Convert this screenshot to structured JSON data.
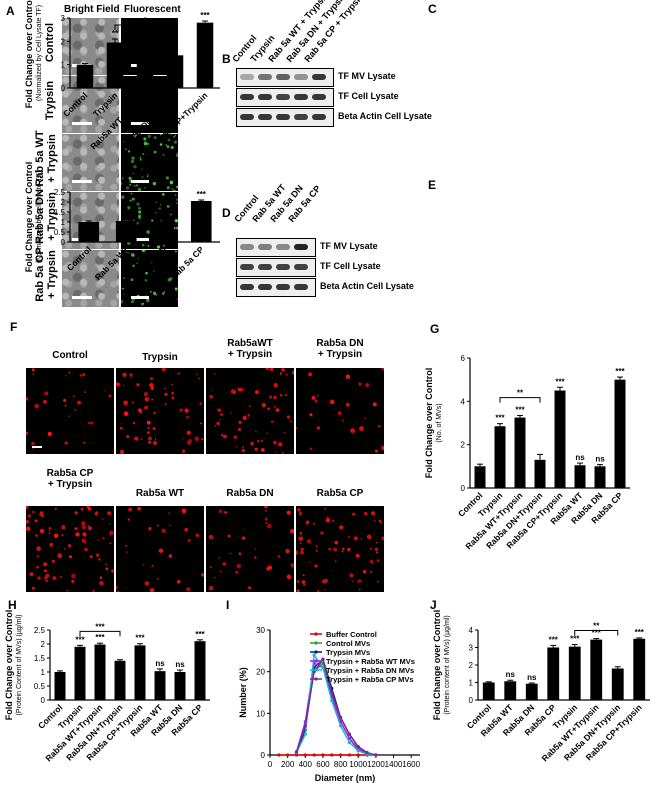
{
  "panel_labels": [
    "A",
    "B",
    "C",
    "D",
    "E",
    "F",
    "G",
    "H",
    "I",
    "J"
  ],
  "panelA": {
    "col_headers": [
      "Bright Field",
      "Fluorescent"
    ],
    "row_labels": [
      "Control",
      "Trypsin",
      "Rab 5a WT + Trypsin",
      "Rab 5a DN + Trypsin",
      "Rab 5a CP + Trypsin"
    ],
    "fluor_levels": [
      0,
      0,
      0.45,
      0.35,
      0.3
    ]
  },
  "panelB": {
    "lanes": [
      "Control",
      "Trypsin",
      "Rab 5a WT + Trypsin",
      "Rab 5a DN + Trypsin",
      "Rab 5a CP + Trypsin"
    ],
    "rows": [
      "TF MV Lysate",
      "TF Cell Lysate",
      "Beta Actin Cell Lysate"
    ]
  },
  "panelD": {
    "lanes": [
      "Control",
      "Rab 5a WT",
      "Rab 5a DN",
      "Rab 5a CP"
    ],
    "rows": [
      "TF MV Lysate",
      "TF Cell Lysate",
      "Beta Actin Cell Lysate"
    ]
  },
  "panelF": {
    "titles": [
      "Control",
      "Trypsin",
      "Rab5aWT + Trypsin",
      "Rab5a DN + Trypsin",
      "Rab5a CP + Trypsin",
      "Rab5a WT",
      "Rab5a DN",
      "Rab5a CP"
    ],
    "densities": [
      0.3,
      0.65,
      0.6,
      0.25,
      0.85,
      0.3,
      0.35,
      0.75
    ]
  },
  "chart_data": [
    {
      "id": "C",
      "type": "bar",
      "categories": [
        "Control",
        "Trypsin",
        "Rab5a WT+Trypsin",
        "Rab5a DN+Trypsin",
        "Rab5a CP+Trypsin"
      ],
      "values": [
        1.0,
        1.95,
        2.3,
        1.4,
        2.8
      ],
      "errors": [
        0.05,
        0.15,
        0.07,
        0.08,
        0.07
      ],
      "sig": [
        "",
        "**",
        "***",
        "",
        "***"
      ],
      "brackets": [
        {
          "from": 1,
          "to": 3,
          "label": "*"
        }
      ],
      "ylabel": "Fold Change over Control",
      "ylabel2": "(Normalized by Cell Lysate TF)",
      "ylim": [
        0,
        3
      ],
      "yticks": [
        0,
        1,
        2,
        3
      ]
    },
    {
      "id": "E",
      "type": "bar",
      "categories": [
        "Control",
        "Rab 5a WT",
        "Rab 5a DN",
        "Rab 5a CP"
      ],
      "values": [
        1.0,
        1.05,
        1.03,
        2.05
      ],
      "errors": [
        0.05,
        0.05,
        0.04,
        0.05
      ],
      "sig": [
        "",
        "ns",
        "ns",
        "***"
      ],
      "brackets": [],
      "ylabel": "Fold Change over Control",
      "ylabel2": "(Normalized by cell lysate TF)",
      "ylim": [
        0,
        2.5
      ],
      "yticks": [
        0,
        0.5,
        1,
        1.5,
        2,
        2.5
      ]
    },
    {
      "id": "G",
      "type": "bar",
      "categories": [
        "Control",
        "Trypsin",
        "Rab5a WT+Trypsin",
        "Rab5a DN+Trypsin",
        "Rab5a CP+Trypsin",
        "Rab5a WT",
        "Rab5a DN",
        "Rab5a CP"
      ],
      "values": [
        1.0,
        2.85,
        3.25,
        1.3,
        4.5,
        1.05,
        1.0,
        5.0
      ],
      "errors": [
        0.1,
        0.12,
        0.1,
        0.25,
        0.15,
        0.1,
        0.08,
        0.12
      ],
      "sig": [
        "",
        "***",
        "***",
        "",
        "***",
        "ns",
        "ns",
        "***"
      ],
      "brackets": [
        {
          "from": 1,
          "to": 3,
          "label": "**"
        }
      ],
      "ylabel": "Fold Change over Control",
      "ylabel2": "(No. of MVs)",
      "ylim": [
        0,
        6
      ],
      "yticks": [
        0,
        2,
        4,
        6
      ]
    },
    {
      "id": "H",
      "type": "bar",
      "categories": [
        "Control",
        "Trypsin",
        "Rab5a WT+Trypsin",
        "Rab5a DN+Trypsin",
        "Rab5a CP+Trypsin",
        "Rab5a WT",
        "Rab5a DN",
        "Rab5a CP"
      ],
      "values": [
        1.0,
        1.9,
        1.98,
        1.4,
        1.95,
        1.03,
        1.0,
        2.1
      ],
      "errors": [
        0.04,
        0.05,
        0.05,
        0.04,
        0.06,
        0.08,
        0.07,
        0.05
      ],
      "sig": [
        "",
        "***",
        "***",
        "",
        "***",
        "ns",
        "ns",
        "***"
      ],
      "brackets": [
        {
          "from": 1,
          "to": 3,
          "label": "***"
        }
      ],
      "ylabel": "Fold Change over Control",
      "ylabel2": "(Protein Content of MVs) (µg/ml)",
      "ylim": [
        0,
        2.5
      ],
      "yticks": [
        0,
        0.5,
        1,
        1.5,
        2,
        2.5
      ]
    },
    {
      "id": "I",
      "type": "line",
      "xlabel": "Diameter (nm)",
      "ylabel": "Number (%)",
      "xlim": [
        0,
        1700
      ],
      "ylim": [
        0,
        30
      ],
      "xticks": [
        0,
        200,
        400,
        600,
        800,
        1000,
        1200,
        1400,
        1600
      ],
      "yticks": [
        0,
        10,
        20,
        30
      ],
      "series": [
        {
          "name": "Buffer Control",
          "color": "#e00000",
          "x": [
            100,
            200,
            300,
            400,
            500,
            600,
            700,
            800,
            900,
            1000,
            1100,
            1200
          ],
          "y": [
            0,
            0,
            0,
            0,
            0,
            0,
            0,
            0,
            0,
            0,
            0,
            0
          ]
        },
        {
          "name": "Control MVs",
          "color": "#2ca02c",
          "x": [
            300,
            400,
            500,
            600,
            700,
            800,
            900,
            1000,
            1100,
            1200
          ],
          "y": [
            0.5,
            7,
            20,
            22,
            15,
            8,
            4,
            1,
            0.3,
            0
          ]
        },
        {
          "name": "Trypsin MVs",
          "color": "#0a1a8c",
          "x": [
            300,
            400,
            500,
            600,
            700,
            800,
            900,
            1000,
            1100,
            1200
          ],
          "y": [
            0.5,
            6,
            21,
            23,
            16,
            9,
            5,
            2,
            0.5,
            0
          ]
        },
        {
          "name": "Trypsin + Rab5a WT MVs",
          "color": "#a020f0",
          "x": [
            300,
            400,
            500,
            600,
            700,
            800,
            900,
            1000,
            1100,
            1200
          ],
          "y": [
            0.8,
            8,
            22,
            21,
            14,
            8,
            4,
            1.5,
            0.4,
            0
          ]
        },
        {
          "name": "Trypsin + Rab5a DN MVs",
          "color": "#17b8c8",
          "x": [
            300,
            400,
            500,
            600,
            700,
            800,
            900,
            1000,
            1100,
            1200
          ],
          "y": [
            0.5,
            5,
            24,
            21,
            13,
            7,
            3,
            1,
            0.2,
            0
          ]
        },
        {
          "name": "Trypsin + Rab5a CP MVs",
          "color": "#7a2c8c",
          "x": [
            300,
            400,
            500,
            600,
            700,
            800,
            900,
            1000,
            1100,
            1200
          ],
          "y": [
            0.7,
            7,
            20,
            23,
            15,
            9,
            5,
            2,
            0.6,
            0
          ]
        }
      ]
    },
    {
      "id": "J",
      "type": "bar",
      "categories": [
        "Control",
        "Rab5a WT",
        "Rab5a DN",
        "Rab5a CP",
        "Trypsin",
        "Rab5a WT+Trypsin",
        "Rab5a DN+Trypsin",
        "Rab5a CP+Trypsin"
      ],
      "values": [
        1.0,
        1.07,
        0.93,
        3.0,
        3.05,
        3.45,
        1.8,
        3.5
      ],
      "errors": [
        0.04,
        0.06,
        0.04,
        0.12,
        0.12,
        0.06,
        0.1,
        0.05
      ],
      "sig": [
        "",
        "ns",
        "ns",
        "***",
        "***",
        "***",
        "",
        "***"
      ],
      "brackets": [
        {
          "from": 4,
          "to": 6,
          "label": "**"
        }
      ],
      "ylabel": "Fold Change over Control",
      "ylabel2": "(Protein content of MVs) (µg/ml)",
      "ylim": [
        0,
        4
      ],
      "yticks": [
        0,
        1,
        2,
        3,
        4
      ]
    }
  ]
}
